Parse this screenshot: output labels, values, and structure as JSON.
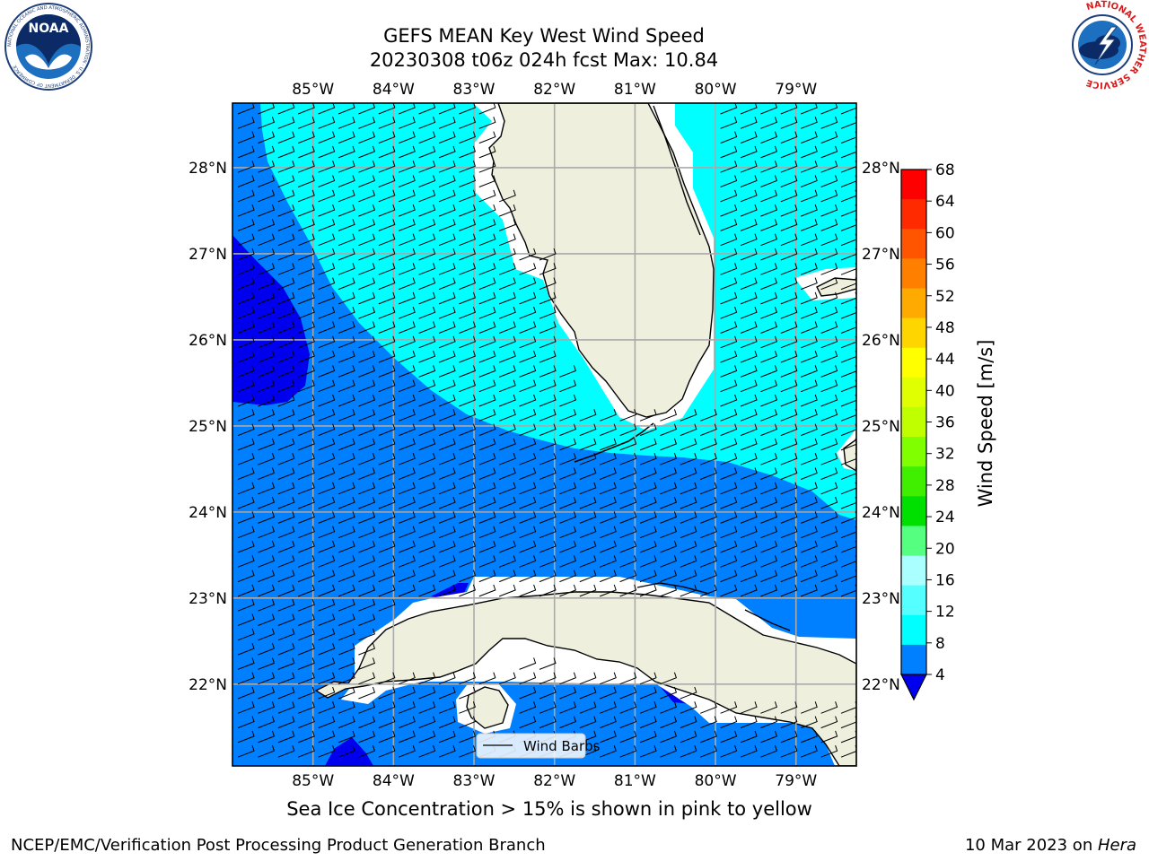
{
  "title": {
    "line1": "GEFS MEAN Key West Wind Speed",
    "line2": "20230308 t06z 024h fcst   Max: 10.84"
  },
  "logos": {
    "left": {
      "name": "noaa-logo",
      "text": "NOAA",
      "ring_text": "NATIONAL OCEANIC AND ATMOSPHERIC ADMINISTRATION · U.S. DEPARTMENT OF COMMERCE",
      "color": "#1d6fc0"
    },
    "right": {
      "name": "nws-logo",
      "ring_text": "NATIONAL WEATHER SERVICE",
      "color": "#d81e1e"
    }
  },
  "map": {
    "lon_labels": [
      "85°W",
      "84°W",
      "83°W",
      "82°W",
      "81°W",
      "80°W",
      "79°W"
    ],
    "lon_values": [
      -85,
      -84,
      -83,
      -82,
      -81,
      -80,
      -79
    ],
    "lat_labels": [
      "28°N",
      "27°N",
      "26°N",
      "25°N",
      "24°N",
      "23°N",
      "22°N"
    ],
    "lat_values": [
      28,
      27,
      26,
      25,
      24,
      23,
      22
    ],
    "lon_range": [
      -86,
      -78.25
    ],
    "lat_range": [
      21.05,
      28.75
    ],
    "land_color": "#efefdd",
    "wind_fill_colors": {
      "4-8": "#0080ff",
      "8-12": "#00ffff",
      "below-4": "#0000ee"
    },
    "barb_direction": "southwesterly",
    "legend_label": "Wind Barbs"
  },
  "colorbar": {
    "label": "Wind Speed [m/s]",
    "ticks": [
      "68",
      "64",
      "60",
      "56",
      "52",
      "48",
      "44",
      "40",
      "36",
      "32",
      "28",
      "24",
      "20",
      "16",
      "12",
      "8",
      "4"
    ],
    "colors": [
      "#ff0000",
      "#ff2a00",
      "#ff5500",
      "#ff8000",
      "#ffaa00",
      "#ffd500",
      "#ffff00",
      "#e0ff00",
      "#c0ff00",
      "#80ff00",
      "#40ee00",
      "#00e000",
      "#55ff80",
      "#aaffff",
      "#55ffff",
      "#00ffff",
      "#0080ff"
    ],
    "under_color": "#0000ee"
  },
  "caption": "Sea Ice Concentration > 15% is shown in pink to yellow",
  "footer": {
    "left": "NCEP/EMC/Verification Post Processing Product Generation Branch",
    "right_date": "10 Mar 2023 on ",
    "right_host": "Hera"
  }
}
